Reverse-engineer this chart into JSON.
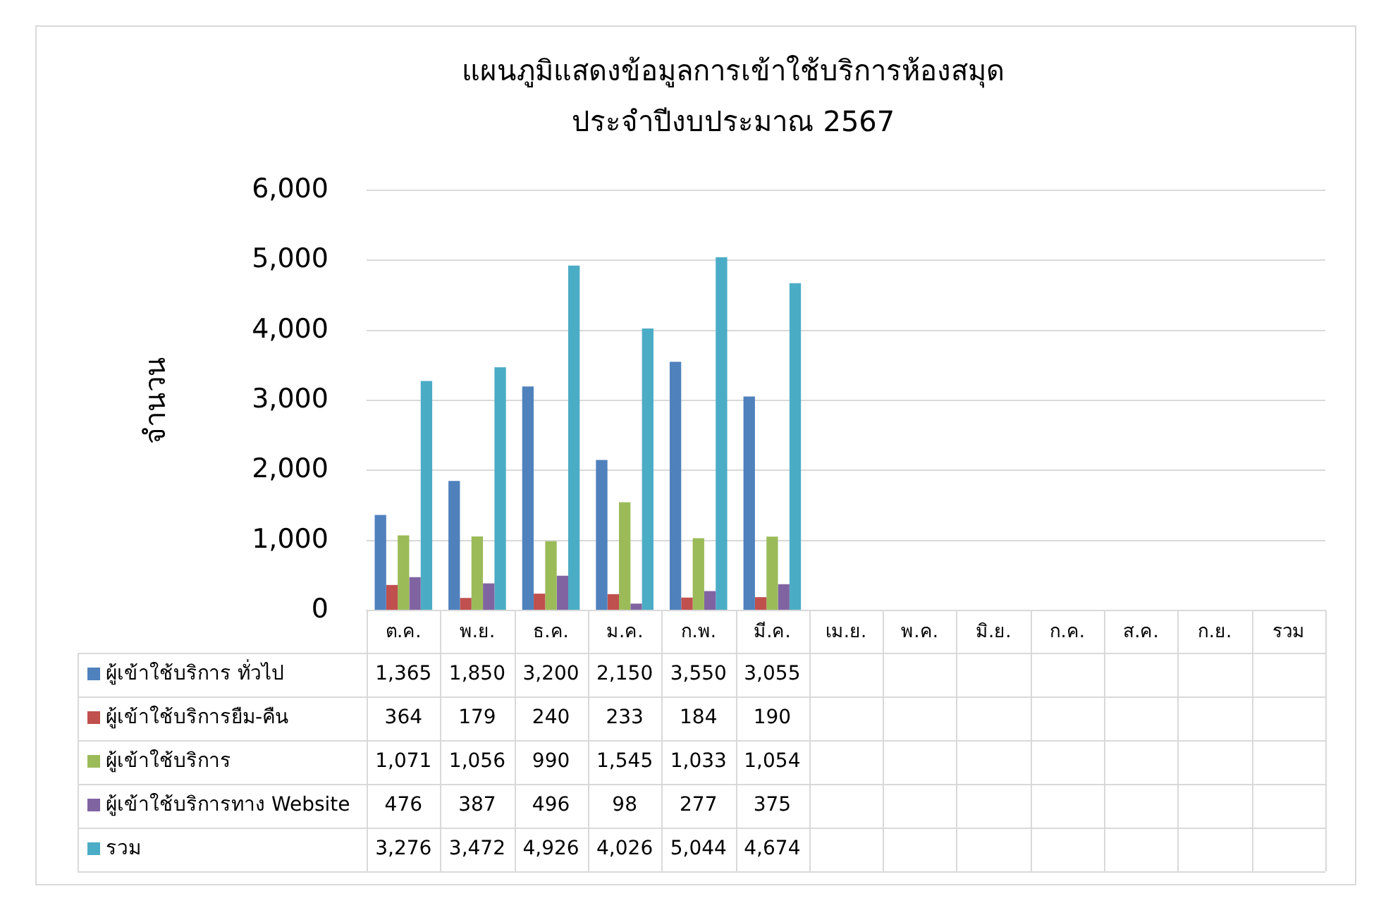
{
  "chart_data": {
    "type": "bar",
    "title": "แผนภูมิแสดงข้อมูลการเข้าใช้บริการห้องสมุด",
    "subtitle": "ประจำปีงบประมาณ 2567",
    "ylabel": "จำนวน",
    "categories": [
      "ต.ค.",
      "พ.ย.",
      "ธ.ค.",
      "ม.ค.",
      "ก.พ.",
      "มี.ค.",
      "เม.ย.",
      "พ.ค.",
      "มิ.ย.",
      "ก.ค.",
      "ส.ค.",
      "ก.ย.",
      "รวม"
    ],
    "series": [
      {
        "name": "ผู้เข้าใช้บริการ ทั่วไป",
        "color": "#4f81bd",
        "values": [
          1365,
          1850,
          3200,
          2150,
          3550,
          3055,
          null,
          null,
          null,
          null,
          null,
          null,
          null
        ],
        "value_labels": [
          "1,365",
          "1,850",
          "3,200",
          "2,150",
          "3,550",
          "3,055",
          null,
          null,
          null,
          null,
          null,
          null,
          null
        ]
      },
      {
        "name": "ผู้เข้าใช้บริการยืม-คืน",
        "color": "#c0504d",
        "values": [
          364,
          179,
          240,
          233,
          184,
          190,
          null,
          null,
          null,
          null,
          null,
          null,
          null
        ],
        "value_labels": [
          "364",
          "179",
          "240",
          "233",
          "184",
          "190",
          null,
          null,
          null,
          null,
          null,
          null,
          null
        ]
      },
      {
        "name": "ผู้เข้าใช้บริการ",
        "color": "#9bbb59",
        "values": [
          1071,
          1056,
          990,
          1545,
          1033,
          1054,
          null,
          null,
          null,
          null,
          null,
          null,
          null
        ],
        "value_labels": [
          "1,071",
          "1,056",
          "990",
          "1,545",
          "1,033",
          "1,054",
          null,
          null,
          null,
          null,
          null,
          null,
          null
        ]
      },
      {
        "name": "ผู้เข้าใช้บริการทาง Website",
        "color": "#8064a2",
        "values": [
          476,
          387,
          496,
          98,
          277,
          375,
          null,
          null,
          null,
          null,
          null,
          null,
          null
        ],
        "value_labels": [
          "476",
          "387",
          "496",
          "98",
          "277",
          "375",
          null,
          null,
          null,
          null,
          null,
          null,
          null
        ]
      },
      {
        "name": "รวม",
        "color": "#4bacc6",
        "values": [
          3276,
          3472,
          4926,
          4026,
          5044,
          4674,
          null,
          null,
          null,
          null,
          null,
          null,
          null
        ],
        "value_labels": [
          "3,276",
          "3,472",
          "4,926",
          "4,026",
          "5,044",
          "4,674",
          null,
          null,
          null,
          null,
          null,
          null,
          null
        ]
      }
    ],
    "ylim": [
      0,
      6000
    ],
    "yticks": [
      0,
      {
        "value": 1000,
        "label": "1,000"
      },
      {
        "value": 2000,
        "label": "2,000"
      },
      {
        "value": 3000,
        "label": "3,000"
      },
      {
        "value": 4000,
        "label": "4,000"
      },
      {
        "value": 5000,
        "label": "5,000"
      },
      {
        "value": 6000,
        "label": "6,000"
      }
    ],
    "grid": "y",
    "legend": "bottom"
  }
}
